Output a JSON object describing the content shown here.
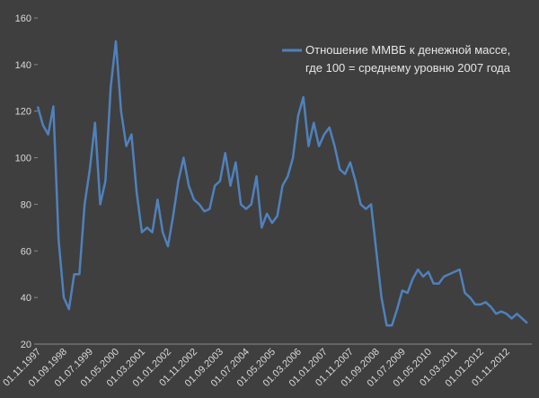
{
  "chart_data": {
    "type": "line",
    "categories": [
      "01.11.1997",
      null,
      null,
      null,
      null,
      "01.09.1998",
      null,
      null,
      null,
      null,
      "01.07.1999",
      null,
      null,
      null,
      null,
      "01.05.2000",
      null,
      null,
      null,
      null,
      "01.03.2001",
      null,
      null,
      null,
      null,
      "01.01.2002",
      null,
      null,
      null,
      null,
      "01.11.2002",
      null,
      null,
      null,
      null,
      "01.09.2003",
      null,
      null,
      null,
      null,
      "01.07.2004",
      null,
      null,
      null,
      null,
      "01.05.2005",
      null,
      null,
      null,
      null,
      "01.03.2006",
      null,
      null,
      null,
      null,
      "01.01.2007",
      null,
      null,
      null,
      null,
      "01.11.2007",
      null,
      null,
      null,
      null,
      "01.09.2008",
      null,
      null,
      null,
      null,
      "01.07.2009",
      null,
      null,
      null,
      null,
      "01.05.2010",
      null,
      null,
      null,
      null,
      "01.03.2011",
      null,
      null,
      null,
      null,
      "01.01.2012",
      null,
      null,
      null,
      null,
      "01.11.2012",
      null,
      null,
      null,
      null
    ],
    "series": [
      {
        "name": "Отношение ММВБ к денежной массе,\nгде 100 = среднему уровню 2007 года",
        "color": "#4f81bd",
        "values": [
          122,
          114,
          110,
          122,
          65,
          40,
          35,
          50,
          50,
          80,
          95,
          115,
          80,
          90,
          130,
          150,
          120,
          105,
          110,
          85,
          68,
          70,
          68,
          82,
          68,
          62,
          75,
          90,
          100,
          88,
          82,
          80,
          77,
          78,
          88,
          90,
          102,
          88,
          98,
          80,
          78,
          80,
          92,
          70,
          76,
          72,
          75,
          88,
          92,
          100,
          118,
          126,
          105,
          115,
          105,
          110,
          113,
          105,
          95,
          93,
          98,
          90,
          80,
          78,
          80,
          60,
          40,
          28,
          28,
          35,
          43,
          42,
          48,
          52,
          49,
          51,
          46,
          46,
          49,
          50,
          51,
          52,
          42,
          40,
          37,
          37,
          38,
          36,
          33,
          34,
          33,
          31,
          33,
          31,
          29
        ]
      }
    ],
    "ylim": [
      20,
      160
    ],
    "yticks": [
      20,
      40,
      60,
      80,
      100,
      120,
      140,
      160
    ],
    "grid": false,
    "legend": "top-right"
  }
}
